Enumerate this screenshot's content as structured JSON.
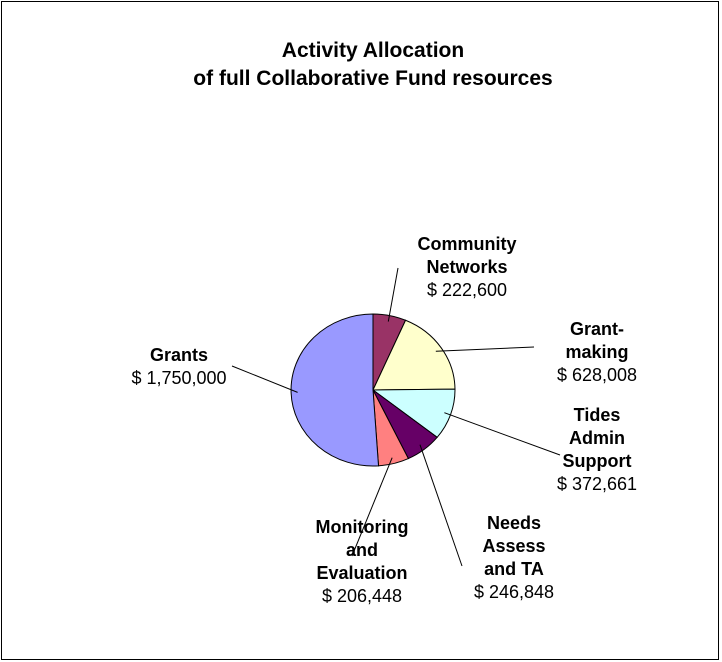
{
  "chart_data": {
    "type": "pie",
    "title": [
      "Activity Allocation",
      "of full Collaborative Fund resources"
    ],
    "slices": [
      {
        "label": "Community\nNetworks",
        "value": 222600,
        "value_text": "$ 222,600",
        "color": "#993366"
      },
      {
        "label": "Grant-\nmaking",
        "value": 628008,
        "value_text": "$ 628,008",
        "color": "#FFFFCC"
      },
      {
        "label": "Tides\nAdmin\nSupport",
        "value": 372661,
        "value_text": "$ 372,661",
        "color": "#CCFFFF"
      },
      {
        "label": "Needs\nAssess\nand TA",
        "value": 246848,
        "value_text": "$ 246,848",
        "color": "#660066"
      },
      {
        "label": "Monitoring\nand\nEvaluation",
        "value": 206448,
        "value_text": "$ 206,448",
        "color": "#FF8080"
      },
      {
        "label": "Grants",
        "value": 1750000,
        "value_text": "$ 1,750,000",
        "color": "#9999FF"
      }
    ],
    "start_angle_deg": 0,
    "direction": "clockwise",
    "legend": "none"
  }
}
